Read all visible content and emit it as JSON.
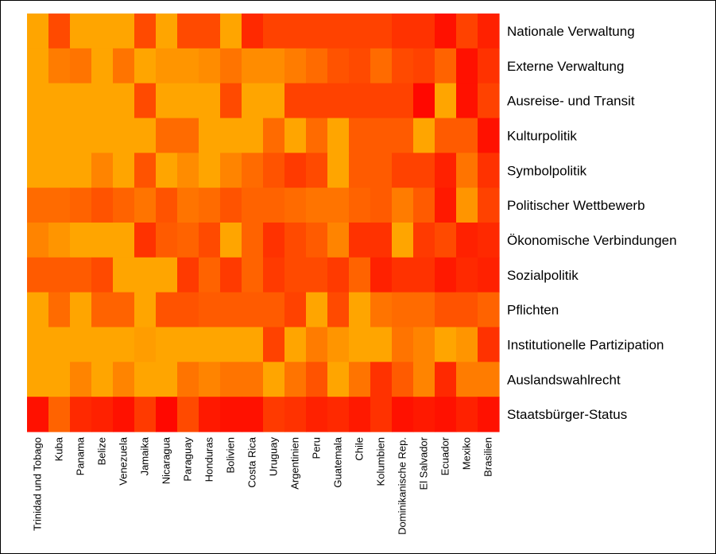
{
  "chart_data": {
    "type": "heatmap",
    "x": [
      "Trinidad und Tobago",
      "Kuba",
      "Panama",
      "Belize",
      "Venezuela",
      "Jamaika",
      "Nicaragua",
      "Paraguay",
      "Honduras",
      "Bolivien",
      "Costa Rica",
      "Uruguay",
      "Argentinien",
      "Peru",
      "Guatemala",
      "Chile",
      "Kolumbien",
      "Dominikanische Rep.",
      "El Salvador",
      "Ecuador",
      "Mexiko",
      "Brasilien"
    ],
    "y": [
      "Nationale Verwaltung",
      "Externe Verwaltung",
      "Ausreise- und Transit",
      "Kulturpolitik",
      "Symbolpolitik",
      "Politischer Wettbewerb",
      "Ökonomische Verbindungen",
      "Sozialpolitik",
      "Pflichten",
      "Institutionelle Partizipation",
      "Auslandswahlrecht",
      "Staatsbürger-Status"
    ],
    "values": [
      [
        0.0,
        0.55,
        0.0,
        0.0,
        0.0,
        0.55,
        0.0,
        0.55,
        0.55,
        0.0,
        0.75,
        0.6,
        0.6,
        0.6,
        0.6,
        0.6,
        0.6,
        0.7,
        0.7,
        0.9,
        0.6,
        0.8
      ],
      [
        0.0,
        0.25,
        0.3,
        0.0,
        0.3,
        0.0,
        0.1,
        0.1,
        0.15,
        0.3,
        0.15,
        0.15,
        0.25,
        0.35,
        0.5,
        0.55,
        0.35,
        0.55,
        0.6,
        0.4,
        0.9,
        0.7
      ],
      [
        0.0,
        0.0,
        0.0,
        0.0,
        0.0,
        0.55,
        0.0,
        0.0,
        0.0,
        0.55,
        0.0,
        0.0,
        0.6,
        0.6,
        0.6,
        0.6,
        0.6,
        0.6,
        0.95,
        0.0,
        0.9,
        0.6
      ],
      [
        0.0,
        0.0,
        0.0,
        0.0,
        0.0,
        0.0,
        0.35,
        0.35,
        0.0,
        0.0,
        0.0,
        0.35,
        0.0,
        0.35,
        0.0,
        0.45,
        0.45,
        0.45,
        0.0,
        0.45,
        0.45,
        0.9
      ],
      [
        0.0,
        0.0,
        0.0,
        0.2,
        0.0,
        0.5,
        0.0,
        0.15,
        0.0,
        0.2,
        0.35,
        0.5,
        0.65,
        0.55,
        0.0,
        0.45,
        0.45,
        0.6,
        0.6,
        0.8,
        0.3,
        0.7
      ],
      [
        0.35,
        0.35,
        0.4,
        0.5,
        0.4,
        0.3,
        0.5,
        0.3,
        0.35,
        0.5,
        0.4,
        0.4,
        0.35,
        0.3,
        0.3,
        0.4,
        0.45,
        0.25,
        0.45,
        0.85,
        0.1,
        0.6
      ],
      [
        0.2,
        0.1,
        0.0,
        0.0,
        0.0,
        0.7,
        0.45,
        0.4,
        0.55,
        0.0,
        0.4,
        0.7,
        0.55,
        0.45,
        0.2,
        0.7,
        0.7,
        0.0,
        0.65,
        0.55,
        0.8,
        0.75
      ],
      [
        0.45,
        0.45,
        0.45,
        0.55,
        0.0,
        0.0,
        0.0,
        0.65,
        0.4,
        0.65,
        0.4,
        0.65,
        0.55,
        0.55,
        0.65,
        0.4,
        0.8,
        0.7,
        0.7,
        0.85,
        0.75,
        0.8
      ],
      [
        0.0,
        0.35,
        0.0,
        0.4,
        0.4,
        0.0,
        0.5,
        0.5,
        0.45,
        0.45,
        0.45,
        0.45,
        0.6,
        0.0,
        0.55,
        0.0,
        0.3,
        0.35,
        0.35,
        0.5,
        0.5,
        0.4
      ],
      [
        0.0,
        0.0,
        0.0,
        0.0,
        0.0,
        0.05,
        0.0,
        0.0,
        0.0,
        0.0,
        0.0,
        0.6,
        0.0,
        0.25,
        0.1,
        0.0,
        0.0,
        0.3,
        0.2,
        0.0,
        0.1,
        0.7
      ],
      [
        0.0,
        0.0,
        0.2,
        0.0,
        0.2,
        0.0,
        0.0,
        0.3,
        0.2,
        0.3,
        0.3,
        0.0,
        0.3,
        0.5,
        0.0,
        0.3,
        0.7,
        0.45,
        0.2,
        0.75,
        0.25,
        0.25
      ],
      [
        0.9,
        0.4,
        0.75,
        0.8,
        0.9,
        0.65,
        0.95,
        0.55,
        0.85,
        0.9,
        0.9,
        0.65,
        0.7,
        0.8,
        0.75,
        0.85,
        0.7,
        0.9,
        0.85,
        0.9,
        0.8,
        0.9
      ]
    ],
    "color_scale": [
      "#ffa500",
      "#ff0000"
    ],
    "grid": false,
    "legend": "none"
  }
}
